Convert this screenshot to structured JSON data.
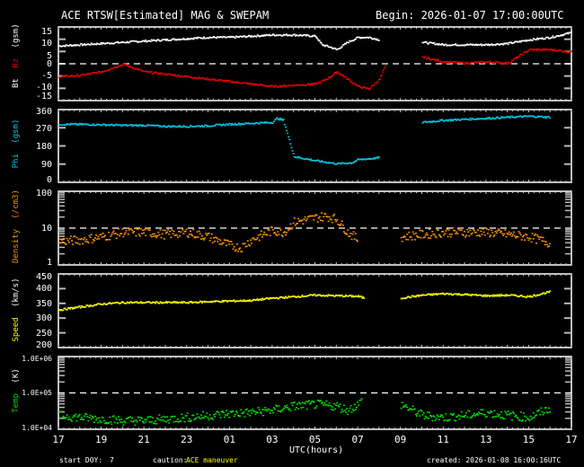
{
  "header": {
    "title": "ACE RTSW[Estimated] MAG & SWEPAM",
    "begin": "Begin: 2026-01-07 17:00:00UTC"
  },
  "footer": {
    "start_doy_label": "start DOY:",
    "start_doy_value": "7",
    "caution_label": "caution:",
    "caution_value": "ACE maneuver",
    "created": "created: 2026-01-08 16:00:16UTC",
    "xaxis_label": "UTC(hours)"
  },
  "colors": {
    "bt": "#ffffff",
    "bz": "#e00000",
    "phi": "#00c8e8",
    "density": "#ff9400",
    "speed": "#ffff00",
    "temp": "#00e000",
    "frame": "#ffffff",
    "background": "#000000"
  },
  "chart_data": [
    {
      "type": "scatter",
      "title": "Bt / Bz (gsm)",
      "ylabel_parts": [
        "Bt",
        "Bz",
        "(gsm)"
      ],
      "ylim": [
        -15,
        15
      ],
      "yticks": [
        "15",
        "10",
        "5",
        "0",
        "-5",
        "-10",
        "-15"
      ],
      "reference_line": 0,
      "x_hours": [
        0,
        1,
        2,
        3,
        4,
        5,
        6,
        7,
        8,
        9,
        10,
        11,
        12,
        12.3,
        12.7,
        13,
        13.5,
        14,
        14.5,
        15,
        15.3,
        15.5,
        16,
        17,
        18,
        19,
        20,
        21,
        22,
        23,
        24
      ],
      "series": [
        {
          "name": "Bt",
          "values": [
            7.5,
            8,
            8.5,
            9,
            9.5,
            10,
            10.5,
            11,
            11,
            11.5,
            12,
            12,
            11.5,
            8,
            7,
            6,
            9,
            11,
            11,
            10,
            null,
            null,
            null,
            9,
            8,
            8,
            8,
            8.5,
            10,
            11,
            13
          ]
        },
        {
          "name": "Bz",
          "values": [
            -5,
            -4.5,
            -3,
            0,
            -3,
            -4,
            -5,
            -6,
            -7,
            -8,
            -9,
            -8.5,
            -8,
            -7,
            -5,
            -3,
            -6,
            -9,
            -10,
            -6,
            0,
            null,
            null,
            3,
            1,
            0.5,
            1,
            0.5,
            6,
            6,
            5
          ]
        }
      ]
    },
    {
      "type": "scatter",
      "title": "Phi (gsm)",
      "ylabel": "Phi (gsm)",
      "ylim": [
        0,
        360
      ],
      "yticks": [
        "360",
        "270",
        "180",
        "90",
        "0"
      ],
      "x_hours": [
        0,
        1,
        2,
        3,
        4,
        5,
        6,
        7,
        8,
        9,
        10,
        10.2,
        10.5,
        11,
        12,
        13,
        13.7,
        14,
        15,
        15.5,
        16,
        17,
        18,
        19,
        20,
        21,
        22,
        23
      ],
      "values": [
        290,
        290,
        288,
        285,
        285,
        280,
        280,
        283,
        290,
        295,
        300,
        320,
        310,
        130,
        110,
        95,
        100,
        115,
        125,
        null,
        null,
        300,
        310,
        315,
        320,
        325,
        330,
        325
      ]
    },
    {
      "type": "scatter",
      "title": "Density (/cm3)",
      "ylabel": "Density (/cm3)",
      "yscale": "log",
      "ylim": [
        1,
        100
      ],
      "yticks": [
        "100",
        "10",
        "1"
      ],
      "reference_line": 10,
      "x_hours": [
        0,
        1,
        2,
        3,
        4,
        5,
        6,
        7,
        8,
        8.5,
        9,
        10,
        10.5,
        11,
        12,
        12.5,
        13,
        13.5,
        14,
        15,
        16,
        17,
        18,
        19,
        20,
        21,
        22,
        23
      ],
      "values": [
        4.5,
        5,
        6,
        8,
        8,
        7,
        8,
        6,
        3.5,
        3,
        5,
        9,
        8,
        15,
        20,
        22,
        18,
        8,
        5,
        null,
        6,
        7,
        8,
        8,
        8,
        7,
        6,
        4
      ]
    },
    {
      "type": "scatter",
      "title": "Speed (km/s)",
      "ylabel": "Speed (km/s)",
      "ylim": [
        200,
        450
      ],
      "yticks": [
        "450",
        "400",
        "350",
        "300",
        "250",
        "200"
      ],
      "x_hours": [
        0,
        1,
        2,
        3,
        4,
        5,
        6,
        7,
        8,
        9,
        10,
        10.5,
        11,
        12,
        13,
        14,
        14.3,
        15,
        15.5,
        16,
        17,
        18,
        19,
        20,
        21,
        22,
        23
      ],
      "values": [
        330,
        340,
        350,
        355,
        355,
        355,
        355,
        358,
        360,
        362,
        370,
        372,
        375,
        380,
        378,
        376,
        370,
        null,
        null,
        370,
        380,
        385,
        382,
        378,
        380,
        375,
        392
      ]
    },
    {
      "type": "scatter",
      "title": "Temp (K)",
      "ylabel": "Temp (K)",
      "yscale": "log",
      "ylim": [
        10000,
        1000000
      ],
      "yticks": [
        "1.0E+06",
        "1.0E+05",
        "1.0E+04"
      ],
      "reference_line": 100000,
      "x_hours": [
        0,
        1,
        2,
        3,
        4,
        5,
        6,
        7,
        8,
        9,
        10,
        11,
        12,
        13,
        13.5,
        14,
        14.2,
        15,
        15.5,
        16,
        17,
        18,
        19,
        20,
        21,
        22,
        23
      ],
      "values": [
        25000,
        22000,
        20000,
        18000,
        18000,
        20000,
        22000,
        25000,
        28000,
        30000,
        35000,
        45000,
        50000,
        45000,
        35000,
        50000,
        70000,
        null,
        null,
        50000,
        25000,
        22000,
        25000,
        30000,
        25000,
        22000,
        40000
      ]
    }
  ],
  "xaxis": {
    "ticks": [
      "17",
      "19",
      "21",
      "23",
      "01",
      "03",
      "05",
      "07",
      "09",
      "11",
      "13",
      "15",
      "17"
    ],
    "range_hours": [
      0,
      24
    ]
  },
  "panels": {
    "bz": {
      "label_bt": "Bt",
      "label_bz": "Bz",
      "label_unit": "(gsm)"
    },
    "phi": {
      "label": "Phi",
      "unit": "(gsm)"
    },
    "density": {
      "label": "Density",
      "unit": "(/cm3)"
    },
    "speed": {
      "label": "Speed",
      "unit": "(km/s)"
    },
    "temp": {
      "label": "Temp",
      "unit": "(K)"
    }
  }
}
